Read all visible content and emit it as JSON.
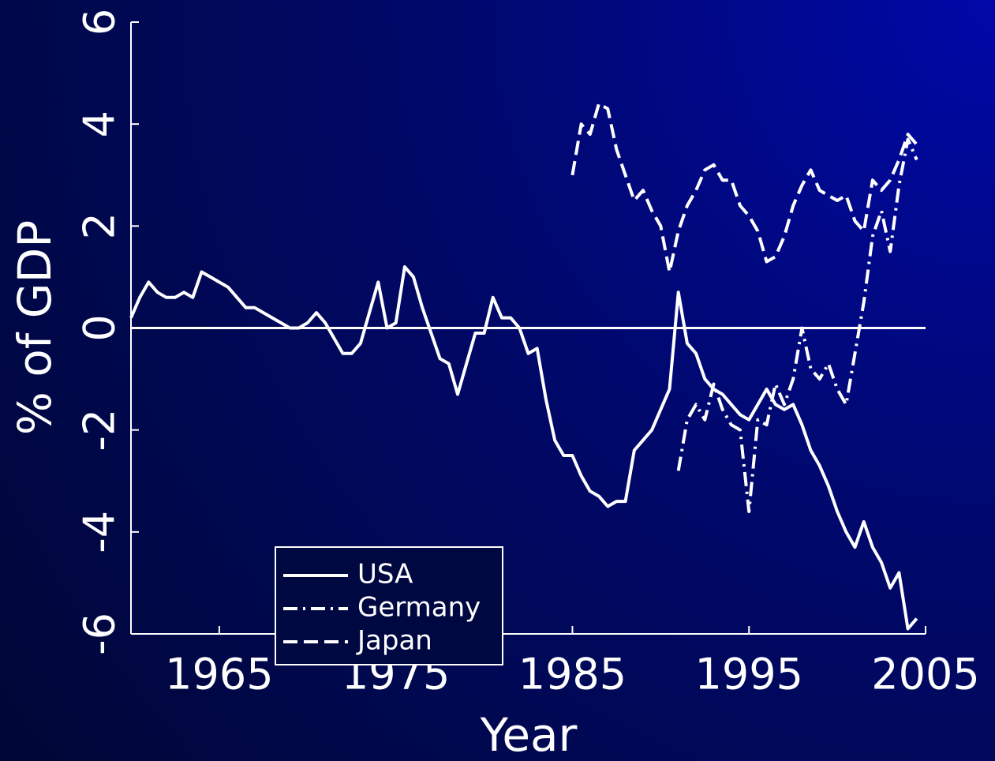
{
  "chart_data": {
    "type": "line",
    "xlabel": "Year",
    "ylabel": "% of GDP",
    "xlim": [
      1960,
      2005
    ],
    "ylim": [
      -6,
      6
    ],
    "xticks": [
      1965,
      1975,
      1985,
      1995,
      2005
    ],
    "yticks": [
      -6,
      -4,
      -2,
      0,
      2,
      4,
      6
    ],
    "legend": "lower left",
    "color": "#ffffff",
    "x": [
      1960,
      1960.5,
      1961,
      1961.5,
      1962,
      1962.5,
      1963,
      1963.5,
      1964,
      1964.5,
      1965,
      1965.5,
      1966,
      1966.5,
      1967,
      1967.5,
      1968,
      1968.5,
      1969,
      1969.5,
      1970,
      1970.5,
      1971,
      1971.5,
      1972,
      1972.5,
      1973,
      1973.5,
      1974,
      1974.5,
      1975,
      1975.5,
      1976,
      1976.5,
      1977,
      1977.5,
      1978,
      1978.5,
      1979,
      1979.5,
      1980,
      1980.5,
      1981,
      1981.5,
      1982,
      1982.5,
      1983,
      1983.5,
      1984,
      1984.5,
      1985,
      1985.5,
      1986,
      1986.5,
      1987,
      1987.5,
      1988,
      1988.5,
      1989,
      1989.5,
      1990,
      1990.5,
      1991,
      1991.5,
      1992,
      1992.5,
      1993,
      1993.5,
      1994,
      1994.5,
      1995,
      1995.5,
      1996,
      1996.5,
      1997,
      1997.5,
      1998,
      1998.5,
      1999,
      1999.5,
      2000,
      2000.5,
      2001,
      2001.5,
      2002,
      2002.5,
      2003,
      2003.5,
      2004,
      2004.5
    ],
    "series": [
      {
        "name": "USA",
        "linestyle": "solid",
        "values": [
          0.2,
          0.6,
          0.9,
          0.7,
          0.6,
          0.6,
          0.7,
          0.6,
          1.1,
          1.0,
          0.9,
          0.8,
          0.6,
          0.4,
          0.4,
          0.3,
          0.2,
          0.1,
          0.0,
          0.0,
          0.1,
          0.3,
          0.1,
          -0.2,
          -0.5,
          -0.5,
          -0.3,
          0.3,
          0.9,
          0.0,
          0.1,
          1.2,
          1.0,
          0.4,
          -0.1,
          -0.6,
          -0.7,
          -1.3,
          -0.7,
          -0.1,
          -0.1,
          0.6,
          0.2,
          0.2,
          0.0,
          -0.5,
          -0.4,
          -1.4,
          -2.2,
          -2.5,
          -2.5,
          -2.9,
          -3.2,
          -3.3,
          -3.5,
          -3.4,
          -3.4,
          -2.4,
          -2.2,
          -2.0,
          -1.6,
          -1.2,
          0.7,
          -0.3,
          -0.5,
          -1.0,
          -1.2,
          -1.3,
          -1.5,
          -1.7,
          -1.8,
          -1.5,
          -1.2,
          -1.5,
          -1.6,
          -1.5,
          -1.9,
          -2.4,
          -2.7,
          -3.1,
          -3.6,
          -4.0,
          -4.3,
          -3.8,
          -4.3,
          -4.6,
          -5.1,
          -4.8,
          -5.9,
          -5.7
        ]
      },
      {
        "name": "Germany",
        "linestyle": "dashdot",
        "values": [
          null,
          null,
          null,
          null,
          null,
          null,
          null,
          null,
          null,
          null,
          null,
          null,
          null,
          null,
          null,
          null,
          null,
          null,
          null,
          null,
          null,
          null,
          null,
          null,
          null,
          null,
          null,
          null,
          null,
          null,
          null,
          null,
          null,
          null,
          null,
          null,
          null,
          null,
          null,
          null,
          null,
          null,
          null,
          null,
          null,
          null,
          null,
          null,
          null,
          null,
          null,
          null,
          null,
          null,
          null,
          null,
          null,
          null,
          null,
          null,
          null,
          null,
          -2.8,
          -1.8,
          -1.5,
          -1.8,
          -1.1,
          -1.6,
          -1.9,
          -2.0,
          -3.6,
          -1.8,
          -1.9,
          -1.1,
          -1.5,
          -1.0,
          0.0,
          -0.8,
          -1.0,
          -0.7,
          -1.2,
          -1.5,
          -0.5,
          0.5,
          1.8,
          2.3,
          1.5,
          2.8,
          3.7,
          3.3
        ]
      },
      {
        "name": "Japan",
        "linestyle": "dashed",
        "values": [
          null,
          null,
          null,
          null,
          null,
          null,
          null,
          null,
          null,
          null,
          null,
          null,
          null,
          null,
          null,
          null,
          null,
          null,
          null,
          null,
          null,
          null,
          null,
          null,
          null,
          null,
          null,
          null,
          null,
          null,
          null,
          null,
          null,
          null,
          null,
          null,
          null,
          null,
          null,
          null,
          null,
          null,
          null,
          null,
          null,
          null,
          null,
          null,
          null,
          null,
          3.0,
          4.0,
          3.8,
          4.4,
          4.3,
          3.5,
          3.0,
          2.5,
          2.7,
          2.3,
          2.0,
          1.1,
          1.9,
          2.4,
          2.7,
          3.1,
          3.2,
          2.9,
          2.9,
          2.4,
          2.2,
          1.9,
          1.3,
          1.4,
          1.8,
          2.4,
          2.8,
          3.1,
          2.7,
          2.6,
          2.5,
          2.6,
          2.1,
          1.9,
          2.9,
          2.7,
          2.9,
          3.3,
          3.8,
          3.6
        ]
      }
    ]
  }
}
